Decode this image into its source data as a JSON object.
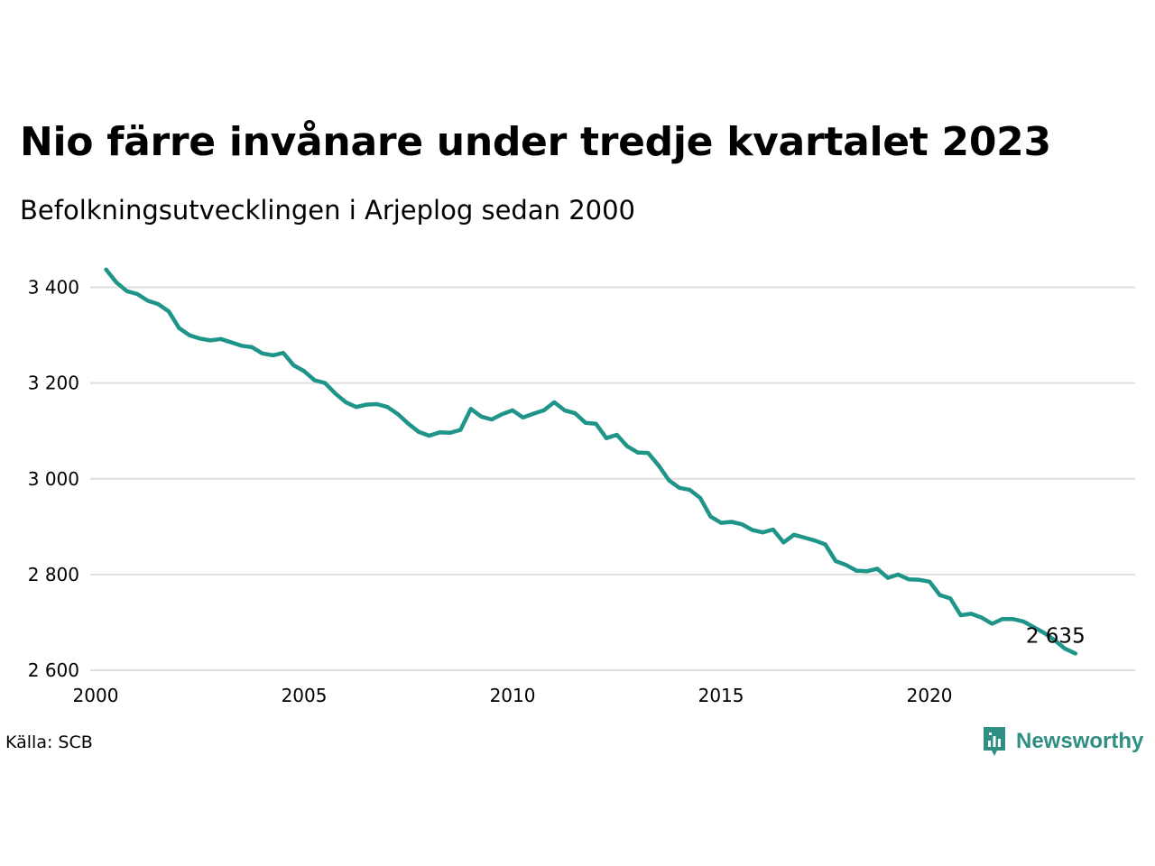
{
  "header": {
    "title": "Nio färre invånare under tredje kvartalet 2023",
    "subtitle": "Befolkningsutvecklingen i Arjeplog sedan 2000"
  },
  "footer": {
    "source": "Källa: SCB",
    "brand_name": "Newsworthy",
    "brand_icon": "newsworthy-logo-icon",
    "brand_color": "#2f8f83"
  },
  "chart_data": {
    "type": "line",
    "title": "Nio färre invånare under tredje kvartalet 2023",
    "subtitle": "Befolkningsutvecklingen i Arjeplog sedan 2000",
    "xlabel": "",
    "ylabel": "",
    "x_ticks": [
      "2000",
      "2005",
      "2010",
      "2015",
      "2020"
    ],
    "y_ticks": [
      "2 600",
      "2 800",
      "3 000",
      "3 200",
      "3 400"
    ],
    "ylim": [
      2600,
      3450
    ],
    "xlim": [
      2000,
      2024.5
    ],
    "grid": "horizontal",
    "legend": "none",
    "line_color": "#1f9488",
    "end_label": "2 635",
    "series": [
      {
        "x": [
          2000.25,
          2000.5,
          2000.75,
          2001.0,
          2001.25,
          2001.5,
          2001.75,
          2002.0,
          2002.25,
          2002.5,
          2002.75,
          2003.0,
          2003.25,
          2003.5,
          2003.75,
          2004.0,
          2004.25,
          2004.5,
          2004.75,
          2005.0,
          2005.25,
          2005.5,
          2005.75,
          2006.0,
          2006.25,
          2006.5,
          2006.75,
          2007.0,
          2007.25,
          2007.5,
          2007.75,
          2008.0,
          2008.25,
          2008.5,
          2008.75,
          2009.0,
          2009.25,
          2009.5,
          2009.75,
          2010.0,
          2010.25,
          2010.5,
          2010.75,
          2011.0,
          2011.25,
          2011.5,
          2011.75,
          2012.0,
          2012.25,
          2012.5,
          2012.75,
          2013.0,
          2013.25,
          2013.5,
          2013.75,
          2014.0,
          2014.25,
          2014.5,
          2014.75,
          2015.0,
          2015.25,
          2015.5,
          2015.75,
          2016.0,
          2016.25,
          2016.5,
          2016.75,
          2017.0,
          2017.25,
          2017.5,
          2017.75,
          2018.0,
          2018.25,
          2018.5,
          2018.75,
          2019.0,
          2019.25,
          2019.5,
          2019.75,
          2020.0,
          2020.25,
          2020.5,
          2020.75,
          2021.0,
          2021.25,
          2021.5,
          2021.75,
          2022.0,
          2022.25,
          2022.5,
          2022.75,
          2023.0,
          2023.25,
          2023.5
        ],
        "values": [
          3437,
          3410,
          3392,
          3386,
          3372,
          3365,
          3350,
          3315,
          3300,
          3293,
          3289,
          3292,
          3285,
          3278,
          3275,
          3262,
          3258,
          3263,
          3237,
          3225,
          3206,
          3200,
          3178,
          3160,
          3150,
          3155,
          3156,
          3150,
          3135,
          3115,
          3098,
          3090,
          3097,
          3096,
          3102,
          3146,
          3130,
          3124,
          3135,
          3143,
          3128,
          3136,
          3143,
          3160,
          3143,
          3137,
          3117,
          3115,
          3085,
          3092,
          3068,
          3055,
          3054,
          3028,
          2997,
          2981,
          2977,
          2960,
          2921,
          2908,
          2910,
          2905,
          2893,
          2888,
          2894,
          2867,
          2883,
          2877,
          2871,
          2863,
          2828,
          2820,
          2808,
          2807,
          2812,
          2793,
          2800,
          2790,
          2789,
          2785,
          2757,
          2750,
          2715,
          2718,
          2710,
          2697,
          2707,
          2707,
          2702,
          2690,
          2678,
          2663,
          2645,
          2635
        ]
      }
    ]
  }
}
